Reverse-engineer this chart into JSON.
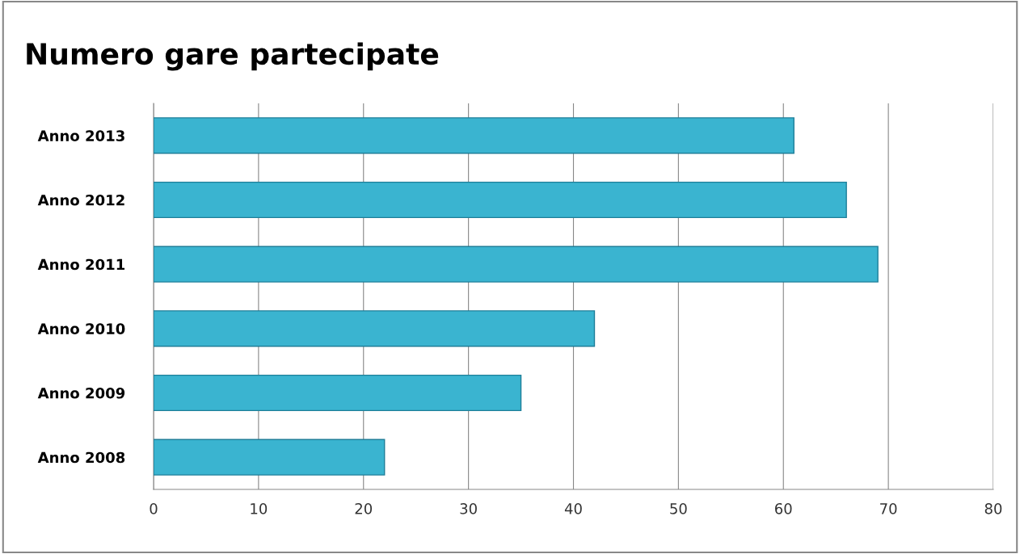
{
  "chart_data": {
    "type": "bar",
    "orientation": "horizontal",
    "title": "Numero gare partecipate",
    "categories": [
      "Anno 2013",
      "Anno 2012",
      "Anno 2011",
      "Anno 2010",
      "Anno 2009",
      "Anno 2008"
    ],
    "values": [
      61,
      66,
      69,
      42,
      35,
      22
    ],
    "color": "#3ab4d0",
    "xlim": [
      0,
      80
    ],
    "xticks": [
      0,
      10,
      20,
      30,
      40,
      50,
      60,
      70,
      80
    ],
    "grid": "x",
    "legend": false
  }
}
